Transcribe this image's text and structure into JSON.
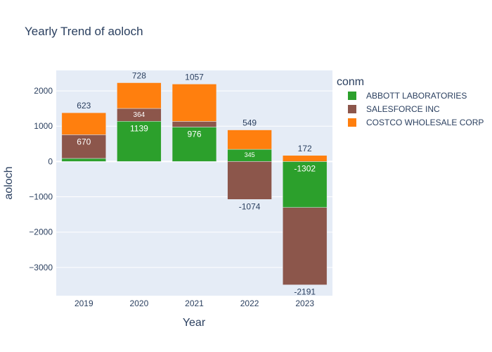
{
  "chart_data": {
    "type": "bar",
    "barmode": "relative",
    "title": "Yearly Trend of aoloch",
    "xlabel": "Year",
    "ylabel": "aoloch",
    "categories": [
      "2019",
      "2020",
      "2021",
      "2022",
      "2023"
    ],
    "ylim": [
      -3800,
      2580
    ],
    "yticks": [
      -3000,
      -2000,
      -1000,
      0,
      1000,
      2000
    ],
    "ytick_labels": [
      "−3000",
      "−2000",
      "−1000",
      "0",
      "1000",
      "2000"
    ],
    "grid": true,
    "legend_title": "conm",
    "legend_position": "right",
    "series": [
      {
        "name": "ABBOTT LABORATORIES",
        "color": "#2ca02c",
        "values": [
          88,
          1139,
          976,
          345,
          -1302
        ],
        "labels": [
          "",
          "1139",
          "976",
          "345",
          "-1302"
        ],
        "label_sizes": [
          12,
          12,
          12,
          9,
          12
        ]
      },
      {
        "name": "SALESFORCE INC",
        "color": "#8c564b",
        "values": [
          670,
          364,
          160,
          -1074,
          -2191
        ],
        "labels": [
          "670",
          "364",
          "",
          "-1074",
          "-2191"
        ],
        "label_sizes": [
          12,
          10,
          12,
          12,
          12
        ],
        "label_position": [
          "inside",
          "inside",
          "inside",
          "outside",
          "outside"
        ]
      },
      {
        "name": "COSTCO WHOLESALE CORP",
        "color": "#ff7f0e",
        "values": [
          623,
          728,
          1057,
          549,
          172
        ],
        "labels": [
          "623",
          "728",
          "1057",
          "549",
          "172"
        ],
        "label_sizes": [
          12,
          12,
          12,
          12,
          12
        ]
      }
    ]
  }
}
